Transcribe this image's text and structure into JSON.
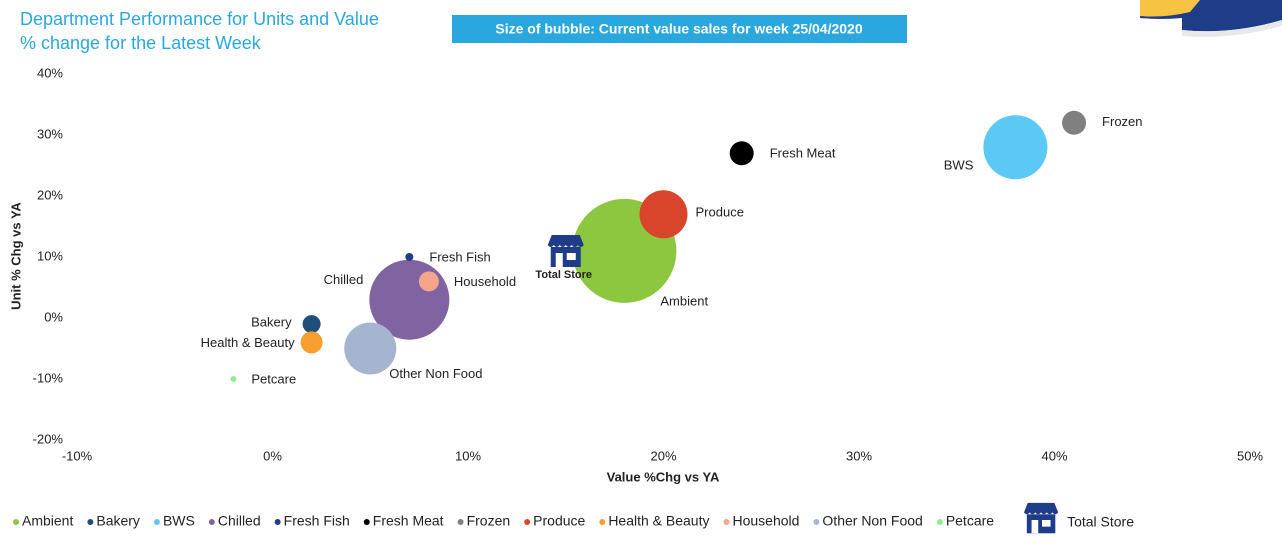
{
  "chart_data": {
    "type": "bubble",
    "title": "Department Performance for Units and Value % change for the Latest Week",
    "subtitle": "Size of bubble: Current value sales for week 25/04/2020",
    "xlabel": "Value %Chg vs YA",
    "ylabel": "Unit % Chg vs YA",
    "xlim": [
      -10,
      50
    ],
    "ylim": [
      -20,
      40
    ],
    "xticks": [
      {
        "value": -10,
        "label": "-10%"
      },
      {
        "value": 0,
        "label": "0%"
      },
      {
        "value": 10,
        "label": "10%"
      },
      {
        "value": 20,
        "label": "20%"
      },
      {
        "value": 30,
        "label": "30%"
      },
      {
        "value": 40,
        "label": "40%"
      },
      {
        "value": 50,
        "label": "50%"
      }
    ],
    "yticks": [
      {
        "value": -20,
        "label": "-20%"
      },
      {
        "value": -10,
        "label": "-10%"
      },
      {
        "value": 0,
        "label": "0%"
      },
      {
        "value": 10,
        "label": "10%"
      },
      {
        "value": 20,
        "label": "20%"
      },
      {
        "value": 30,
        "label": "30%"
      },
      {
        "value": 40,
        "label": "40%"
      }
    ],
    "series": [
      {
        "name": "Ambient",
        "color": "#8dc63f",
        "x": [
          18
        ],
        "values": [
          11
        ],
        "size": [
          2704
        ]
      },
      {
        "name": "Bakery",
        "color": "#1f4e79",
        "x": [
          2
        ],
        "values": [
          -1
        ],
        "size": [
          81
        ]
      },
      {
        "name": "BWS",
        "color": "#5bc8f5",
        "x": [
          38
        ],
        "values": [
          28
        ],
        "size": [
          1024
        ]
      },
      {
        "name": "Chilled",
        "color": "#8064a2",
        "x": [
          7
        ],
        "values": [
          3
        ],
        "size": [
          1600
        ]
      },
      {
        "name": "Fresh Fish",
        "color": "#1f3c88",
        "x": [
          7
        ],
        "values": [
          10
        ],
        "size": [
          16
        ]
      },
      {
        "name": "Fresh Meat",
        "color": "#000000",
        "x": [
          24
        ],
        "values": [
          27
        ],
        "size": [
          144
        ]
      },
      {
        "name": "Frozen",
        "color": "#808080",
        "x": [
          41
        ],
        "values": [
          32
        ],
        "size": [
          144
        ]
      },
      {
        "name": "Produce",
        "color": "#d9452b",
        "x": [
          20
        ],
        "values": [
          17
        ],
        "size": [
          576
        ]
      },
      {
        "name": "Health & Beauty",
        "color": "#f7a030",
        "x": [
          2
        ],
        "values": [
          -4
        ],
        "size": [
          121
        ]
      },
      {
        "name": "Household",
        "color": "#f4a58a",
        "x": [
          8
        ],
        "values": [
          6
        ],
        "size": [
          100
        ]
      },
      {
        "name": "Other Non Food",
        "color": "#a5b4cf",
        "x": [
          5
        ],
        "values": [
          -5
        ],
        "size": [
          676
        ]
      },
      {
        "name": "Petcare",
        "color": "#90ee90",
        "x": [
          -2
        ],
        "values": [
          -10
        ],
        "size": [
          9
        ]
      }
    ],
    "total_store": {
      "name": "Total Store",
      "x": 15,
      "y": 10,
      "color": "#1f3c88"
    }
  }
}
